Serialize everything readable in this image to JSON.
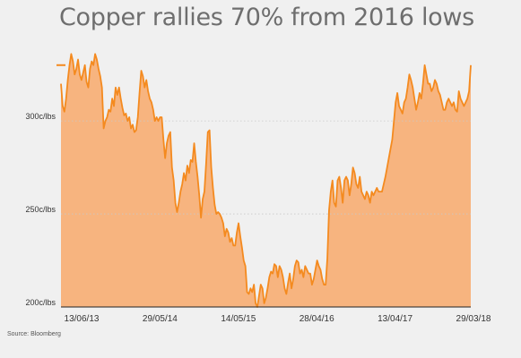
{
  "title": "Copper rallies 70% from 2016 lows",
  "source": "Source: Bloomberg",
  "chart_data": {
    "type": "area",
    "title": "Copper rallies 70% from 2016 lows",
    "ylabel": "",
    "xlabel": "",
    "y_ticks": [
      "200c/lbs",
      "250c/lbs",
      "300c/lbs"
    ],
    "y_tick_values": [
      200,
      250,
      300
    ],
    "x_ticks": [
      "13/06/13",
      "29/05/14",
      "14/05/15",
      "28/04/16",
      "13/04/17",
      "29/03/18"
    ],
    "ylim": [
      200,
      340
    ],
    "grid": "horizontal dotted",
    "last_value": 330,
    "fill_color": "#f7b47f",
    "line_color": "#f48a1f",
    "series": [
      {
        "values": [
          320,
          308,
          305,
          312,
          322,
          330,
          336,
          332,
          325,
          328,
          333,
          325,
          322,
          326,
          330,
          321,
          318,
          328,
          332,
          330,
          336,
          333,
          328,
          324,
          318,
          296,
          300,
          302,
          306,
          305,
          312,
          308,
          318,
          314,
          318,
          312,
          307,
          303,
          304,
          300,
          302,
          296,
          298,
          294,
          295,
          302,
          315,
          327,
          324,
          318,
          322,
          316,
          312,
          310,
          306,
          300,
          302,
          300,
          302,
          302,
          290,
          280,
          288,
          292,
          294,
          275,
          268,
          256,
          251,
          256,
          262,
          266,
          272,
          268,
          276,
          272,
          279,
          278,
          288,
          278,
          270,
          260,
          248,
          258,
          262,
          277,
          294,
          295,
          275,
          264,
          255,
          250,
          251,
          250,
          248,
          245,
          238,
          242,
          240,
          235,
          237,
          233,
          233,
          240,
          245,
          238,
          232,
          225,
          222,
          208,
          207,
          210,
          208,
          212,
          202,
          200,
          206,
          212,
          210,
          202,
          205,
          210,
          216,
          219,
          218,
          223,
          222,
          216,
          222,
          220,
          216,
          210,
          207,
          213,
          218,
          210,
          215,
          222,
          225,
          224,
          218,
          220,
          216,
          222,
          220,
          218,
          218,
          212,
          215,
          220,
          225,
          222,
          220,
          215,
          212,
          212,
          226,
          252,
          262,
          268,
          256,
          254,
          268,
          270,
          264,
          256,
          268,
          270,
          268,
          260,
          266,
          275,
          272,
          266,
          264,
          270,
          262,
          260,
          258,
          262,
          260,
          256,
          262,
          260,
          262,
          264,
          262,
          262,
          262,
          266,
          270,
          275,
          280,
          285,
          290,
          300,
          310,
          315,
          308,
          306,
          304,
          310,
          312,
          318,
          325,
          322,
          318,
          312,
          306,
          310,
          315,
          312,
          320,
          330,
          325,
          320,
          320,
          316,
          318,
          322,
          320,
          316,
          314,
          310,
          306,
          306,
          310,
          312,
          310,
          308,
          310,
          306,
          305,
          316,
          312,
          310,
          308,
          310,
          312,
          316,
          330
        ]
      }
    ]
  }
}
